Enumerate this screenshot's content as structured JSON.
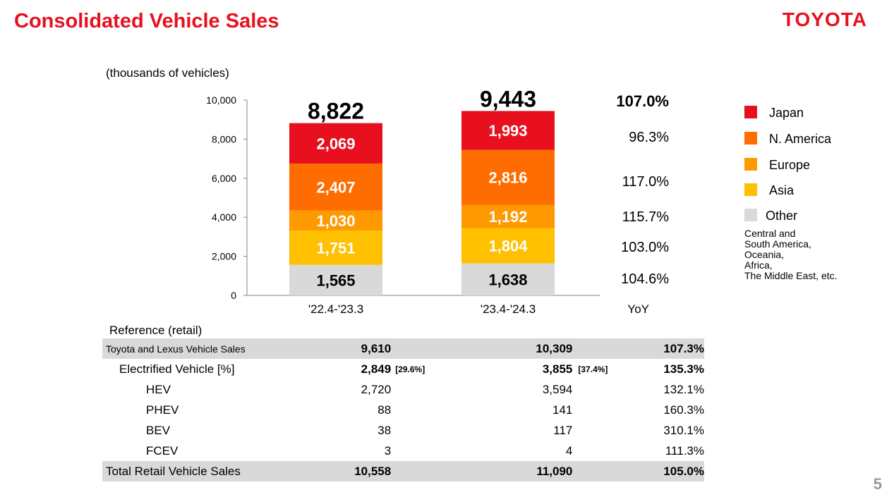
{
  "header": {
    "title": "Consolidated Vehicle Sales",
    "logo": "TOYOTA"
  },
  "unit_label": "(thousands of vehicles)",
  "chart_data": {
    "type": "bar",
    "stacked": true,
    "categories": [
      "'22.4-'23.3",
      "'23.4-'24.3"
    ],
    "totals": [
      "8,822",
      "9,443"
    ],
    "series": [
      {
        "name": "Other",
        "values": [
          1565,
          1638
        ],
        "labels": [
          "1,565",
          "1,638"
        ],
        "color": "#d9d9d9",
        "label_color": "#000000"
      },
      {
        "name": "Asia",
        "values": [
          1751,
          1804
        ],
        "labels": [
          "1,751",
          "1,804"
        ],
        "color": "#ffc000",
        "label_color": "#ffffff"
      },
      {
        "name": "Europe",
        "values": [
          1030,
          1192
        ],
        "labels": [
          "1,030",
          "1,192"
        ],
        "color": "#ff9900",
        "label_color": "#ffffff"
      },
      {
        "name": "N. America",
        "values": [
          2407,
          2816
        ],
        "labels": [
          "2,407",
          "2,816"
        ],
        "color": "#ff6d00",
        "label_color": "#ffffff"
      },
      {
        "name": "Japan",
        "values": [
          2069,
          1993
        ],
        "labels": [
          "2,069",
          "1,993"
        ],
        "color": "#e8101f",
        "label_color": "#ffffff"
      }
    ],
    "yticks": [
      "0",
      "2,000",
      "4,000",
      "6,000",
      "8,000",
      "10,000"
    ],
    "ylim": [
      0,
      10000
    ],
    "yoy_header": "YoY",
    "yoy_total": "107.0%",
    "yoy": {
      "Japan": "96.3%",
      "N. America": "117.0%",
      "Europe": "115.7%",
      "Asia": "103.0%",
      "Other": "104.6%"
    }
  },
  "legend": {
    "items": [
      {
        "label": "Japan",
        "color": "#e8101f"
      },
      {
        "label": "N. America",
        "color": "#ff6d00"
      },
      {
        "label": "Europe",
        "color": "#ff9900"
      },
      {
        "label": "Asia",
        "color": "#ffc000"
      },
      {
        "label": "Other",
        "color": "#d9d9d9"
      }
    ],
    "note": [
      "Central and",
      "South America,",
      "Oceania,",
      "Africa,",
      "The Middle East, etc."
    ]
  },
  "reference": {
    "label": "Reference (retail)",
    "rows": [
      {
        "label": "Toyota and Lexus Vehicle Sales",
        "v1": "9,610",
        "s1": "",
        "v2": "10,309",
        "s2": "",
        "v3": "107.3%"
      },
      {
        "label": "Electrified Vehicle [%]",
        "v1": "2,849",
        "s1": "[29.6%]",
        "v2": "3,855",
        "s2": "[37.4%]",
        "v3": "135.3%"
      },
      {
        "label": "HEV",
        "v1": "2,720",
        "s1": "",
        "v2": "3,594",
        "s2": "",
        "v3": "132.1%"
      },
      {
        "label": "PHEV",
        "v1": "88",
        "s1": "",
        "v2": "141",
        "s2": "",
        "v3": "160.3%"
      },
      {
        "label": "BEV",
        "v1": "38",
        "s1": "",
        "v2": "117",
        "s2": "",
        "v3": "310.1%"
      },
      {
        "label": "FCEV",
        "v1": "3",
        "s1": "",
        "v2": "4",
        "s2": "",
        "v3": "111.3%"
      },
      {
        "label": "Total Retail Vehicle Sales",
        "v1": "10,558",
        "s1": "",
        "v2": "11,090",
        "s2": "",
        "v3": "105.0%"
      }
    ]
  },
  "page_number": "5"
}
